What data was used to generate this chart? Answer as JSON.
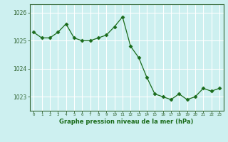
{
  "x": [
    0,
    1,
    2,
    3,
    4,
    5,
    6,
    7,
    8,
    9,
    10,
    11,
    12,
    13,
    14,
    15,
    16,
    17,
    18,
    19,
    20,
    21,
    22,
    23
  ],
  "y": [
    1025.3,
    1025.1,
    1025.1,
    1025.3,
    1025.6,
    1025.1,
    1025.0,
    1025.0,
    1025.1,
    1025.2,
    1025.5,
    1025.85,
    1024.8,
    1024.4,
    1023.7,
    1023.1,
    1023.0,
    1022.9,
    1023.1,
    1022.9,
    1023.0,
    1023.3,
    1023.2,
    1023.3
  ],
  "line_color": "#1a6b1a",
  "marker": "D",
  "marker_size": 2.5,
  "bg_color": "#cdf0f0",
  "grid_color": "#ffffff",
  "axis_color": "#336633",
  "xlabel": "Graphe pression niveau de la mer (hPa)",
  "xlabel_color": "#1a6b1a",
  "ytick_labels": [
    "1023",
    "1024",
    "1025",
    "1026"
  ],
  "ytick_values": [
    1023,
    1024,
    1025,
    1026
  ],
  "xtick_labels": [
    "0",
    "1",
    "2",
    "3",
    "4",
    "5",
    "6",
    "7",
    "8",
    "9",
    "10",
    "11",
    "12",
    "13",
    "14",
    "15",
    "16",
    "17",
    "18",
    "19",
    "20",
    "21",
    "22",
    "23"
  ],
  "ylim": [
    1022.5,
    1026.3
  ],
  "xlim": [
    -0.5,
    23.5
  ]
}
